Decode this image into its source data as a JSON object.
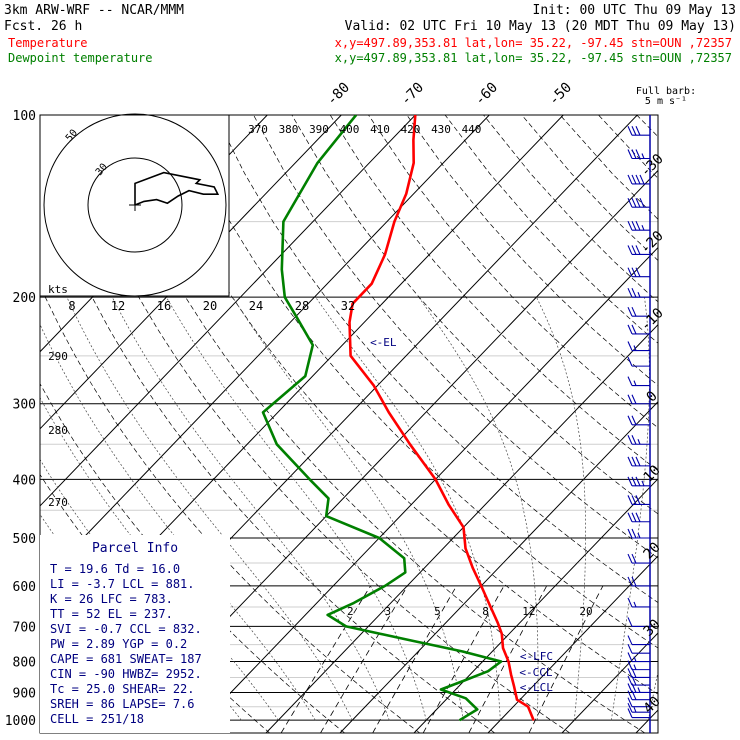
{
  "header": {
    "model": "3km ARW-WRF -- NCAR/MMM",
    "fcst": "Fcst.   26 h",
    "init": "Init: 00 UTC Thu 09 May 13",
    "valid": "Valid: 02 UTC Fri 10 May 13 (20 MDT Thu 09 May 13)",
    "series_temp": "Temperature",
    "series_dew": "Dewpoint temperature",
    "loc_temp": "x,y=497.89,353.81   lat,lon= 35.22, -97.45  stn=OUN ,72357",
    "loc_dew": "x,y=497.89,353.81   lat,lon= 35.22, -97.45  stn=OUN ,72357"
  },
  "colors": {
    "temperature": "#ff0000",
    "dewpoint": "#008000",
    "wind": "#0000aa",
    "header_temp": "#ff0000",
    "header_dew": "#008000",
    "parcel": "#000080"
  },
  "barb_legend": {
    "line1": "Full barb:",
    "line2": "5 m s⁻¹"
  },
  "chart_data": {
    "type": "line",
    "p_ticks": [
      100,
      200,
      300,
      400,
      500,
      600,
      700,
      800,
      900,
      1000
    ],
    "temp_ticks": [
      -80,
      -70,
      -60,
      -50,
      -40,
      -30,
      -20,
      -10,
      0,
      10,
      20,
      30,
      40
    ],
    "theta_ticks": [
      370,
      380,
      390,
      400,
      410,
      420,
      430,
      440
    ],
    "theta_side_ticks": [
      290,
      280,
      270
    ],
    "mixing_ratio_ticks": [
      2,
      3,
      5,
      8,
      12,
      20
    ],
    "series": [
      {
        "name": "Temperature",
        "color": "#ff0000",
        "points": [
          [
            1000,
            24.5
          ],
          [
            950,
            22
          ],
          [
            925,
            19.6
          ],
          [
            880,
            17.5
          ],
          [
            840,
            15.5
          ],
          [
            800,
            13.5
          ],
          [
            760,
            11
          ],
          [
            720,
            9
          ],
          [
            690,
            7
          ],
          [
            650,
            4
          ],
          [
            600,
            0
          ],
          [
            560,
            -3.5
          ],
          [
            520,
            -7
          ],
          [
            480,
            -10
          ],
          [
            440,
            -15
          ],
          [
            400,
            -20
          ],
          [
            350,
            -28
          ],
          [
            310,
            -35
          ],
          [
            280,
            -40.5
          ],
          [
            250,
            -47.5
          ],
          [
            220,
            -52
          ],
          [
            205,
            -54
          ],
          [
            190,
            -54
          ],
          [
            170,
            -56
          ],
          [
            150,
            -59
          ],
          [
            135,
            -61
          ],
          [
            120,
            -64
          ],
          [
            110,
            -67
          ],
          [
            100,
            -70
          ]
        ]
      },
      {
        "name": "Dewpoint temperature",
        "color": "#008000",
        "points": [
          [
            1000,
            14.5
          ],
          [
            960,
            15.5
          ],
          [
            920,
            12.5
          ],
          [
            890,
            8
          ],
          [
            860,
            10
          ],
          [
            830,
            12
          ],
          [
            800,
            12.5
          ],
          [
            770,
            6
          ],
          [
            740,
            -2
          ],
          [
            700,
            -13
          ],
          [
            670,
            -17
          ],
          [
            640,
            -15
          ],
          [
            600,
            -13
          ],
          [
            570,
            -12
          ],
          [
            540,
            -14
          ],
          [
            500,
            -20
          ],
          [
            460,
            -30
          ],
          [
            430,
            -32
          ],
          [
            400,
            -37
          ],
          [
            350,
            -46
          ],
          [
            310,
            -52
          ],
          [
            270,
            -51
          ],
          [
            240,
            -54
          ],
          [
            215,
            -60
          ],
          [
            200,
            -64
          ],
          [
            180,
            -68
          ],
          [
            150,
            -74
          ],
          [
            120,
            -77
          ],
          [
            100,
            -78
          ]
        ]
      }
    ],
    "parcel_labels": [
      {
        "label": "<-LFC",
        "p": 783
      },
      {
        "label": "<-CCL",
        "p": 832
      },
      {
        "label": "<-LCL",
        "p": 881
      },
      {
        "label": "<-EL",
        "p": 237
      }
    ],
    "wind_barbs": [
      {
        "p": 990,
        "flags": 0,
        "full": 1,
        "half": 0
      },
      {
        "p": 970,
        "flags": 0,
        "full": 1,
        "half": 1
      },
      {
        "p": 950,
        "flags": 0,
        "full": 1,
        "half": 0
      },
      {
        "p": 925,
        "flags": 0,
        "full": 2,
        "half": 0
      },
      {
        "p": 900,
        "flags": 0,
        "full": 2,
        "half": 1
      },
      {
        "p": 875,
        "flags": 0,
        "full": 2,
        "half": 0
      },
      {
        "p": 850,
        "flags": 0,
        "full": 2,
        "half": 0
      },
      {
        "p": 825,
        "flags": 0,
        "full": 1,
        "half": 1
      },
      {
        "p": 800,
        "flags": 0,
        "full": 1,
        "half": 1
      },
      {
        "p": 775,
        "flags": 0,
        "full": 1,
        "half": 0
      },
      {
        "p": 750,
        "flags": 0,
        "full": 1,
        "half": 0
      },
      {
        "p": 700,
        "flags": 0,
        "full": 1,
        "half": 0
      },
      {
        "p": 650,
        "flags": 0,
        "full": 1,
        "half": 1
      },
      {
        "p": 600,
        "flags": 0,
        "full": 2,
        "half": 0
      },
      {
        "p": 550,
        "flags": 0,
        "full": 2,
        "half": 0
      },
      {
        "p": 500,
        "flags": 0,
        "full": 2,
        "half": 1
      },
      {
        "p": 470,
        "flags": 0,
        "full": 3,
        "half": 0
      },
      {
        "p": 440,
        "flags": 0,
        "full": 3,
        "half": 0
      },
      {
        "p": 410,
        "flags": 0,
        "full": 3,
        "half": 1
      },
      {
        "p": 380,
        "flags": 0,
        "full": 3,
        "half": 0
      },
      {
        "p": 350,
        "flags": 0,
        "full": 2,
        "half": 1
      },
      {
        "p": 325,
        "flags": 0,
        "full": 2,
        "half": 0
      },
      {
        "p": 300,
        "flags": 0,
        "full": 2,
        "half": 0
      },
      {
        "p": 280,
        "flags": 0,
        "full": 1,
        "half": 1
      },
      {
        "p": 260,
        "flags": 0,
        "full": 1,
        "half": 0
      },
      {
        "p": 245,
        "flags": 0,
        "full": 1,
        "half": 1
      },
      {
        "p": 230,
        "flags": 0,
        "full": 2,
        "half": 0
      },
      {
        "p": 215,
        "flags": 0,
        "full": 2,
        "half": 0
      },
      {
        "p": 200,
        "flags": 0,
        "full": 2,
        "half": 1
      },
      {
        "p": 185,
        "flags": 0,
        "full": 3,
        "half": 0
      },
      {
        "p": 170,
        "flags": 0,
        "full": 3,
        "half": 0
      },
      {
        "p": 155,
        "flags": 0,
        "full": 3,
        "half": 1
      },
      {
        "p": 142,
        "flags": 0,
        "full": 4,
        "half": 0
      },
      {
        "p": 130,
        "flags": 0,
        "full": 4,
        "half": 0
      },
      {
        "p": 118,
        "flags": 0,
        "full": 3,
        "half": 1
      },
      {
        "p": 108,
        "flags": 0,
        "full": 3,
        "half": 0
      }
    ],
    "hodograph": {
      "unit_label": "kts",
      "ring_labels": [
        "50",
        "30"
      ],
      "speed_ticks": [
        8,
        12,
        16,
        20,
        24,
        28,
        32
      ],
      "trace": [
        [
          0,
          0
        ],
        [
          5,
          2
        ],
        [
          12,
          3
        ],
        [
          18,
          1
        ],
        [
          24,
          5
        ],
        [
          30,
          8
        ],
        [
          38,
          6
        ],
        [
          46,
          6
        ],
        [
          44,
          10
        ],
        [
          34,
          12
        ],
        [
          36,
          14
        ],
        [
          26,
          16
        ],
        [
          16,
          18
        ],
        [
          0,
          12
        ],
        [
          0,
          0
        ]
      ]
    },
    "parcel_info": {
      "title": "Parcel Info",
      "rows": [
        "T  =   19.6  Td =  16.0",
        "LI =   -3.7  LCL =  881.",
        "K  =    26   LFC =  783.",
        "TT =    52   EL  =  237.",
        "SVI =  -0.7  CCL =  832.",
        "PW =   2.89  YGP =   0.2",
        "CAPE =  681  SWEAT=  187",
        "CIN =   -90  HWBZ= 2952.",
        "Tc =   25.0  SHEAR=  22.",
        "SREH =   86  LAPSE=  7.6",
        "CELL = 251/18"
      ]
    }
  }
}
